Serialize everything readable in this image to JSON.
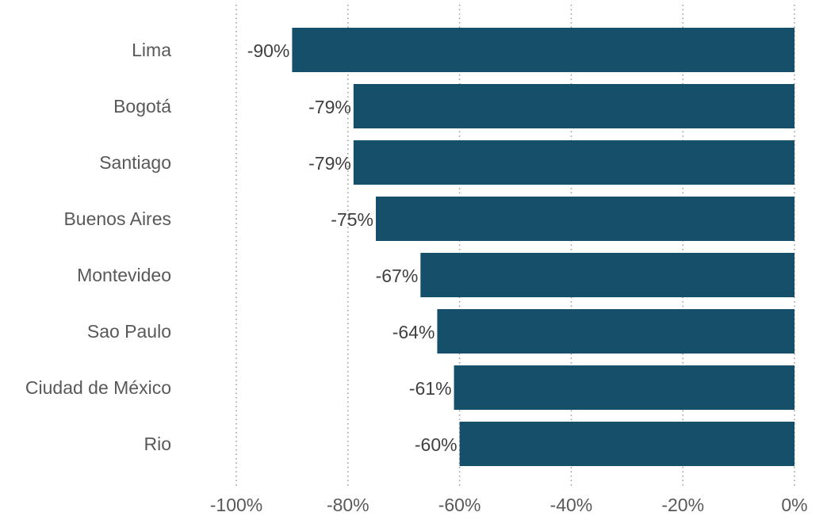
{
  "chart_data": {
    "type": "bar",
    "orientation": "horizontal",
    "categories": [
      "Lima",
      "Bogotá",
      "Santiago",
      "Buenos Aires",
      "Montevideo",
      "Sao Paulo",
      "Ciudad de México",
      "Rio"
    ],
    "values": [
      -90,
      -79,
      -79,
      -75,
      -67,
      -64,
      -61,
      -60
    ],
    "data_labels": [
      "-90%",
      "-79%",
      "-79%",
      "-75%",
      "-67%",
      "-64%",
      "-61%",
      "-60%"
    ],
    "xlim": [
      -100,
      0
    ],
    "x_ticks": [
      -100,
      -80,
      -60,
      -40,
      -20,
      0
    ],
    "x_tick_labels": [
      "-100%",
      "-80%",
      "-60%",
      "-40%",
      "-20%",
      "0%"
    ],
    "title": "",
    "xlabel": "",
    "ylabel": "",
    "grid": "vertical dotted",
    "legend": "none",
    "bar_color": "#154f69"
  }
}
